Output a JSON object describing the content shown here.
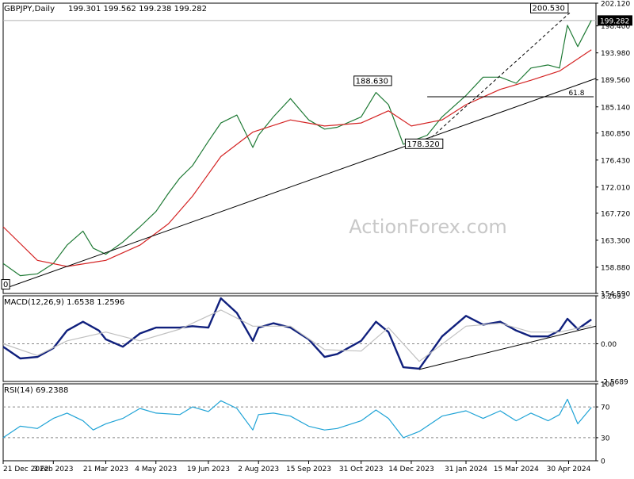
{
  "chart_data": [
    {
      "type": "line",
      "panel": "price",
      "title": "GBPJPY,Daily",
      "ohlc_header": "199.301 199.562 199.238 199.282",
      "watermark": "ActionForex.com",
      "current_price": 199.282,
      "current_price_label": "199.282",
      "ylim": [
        154.59,
        202.12
      ],
      "yticks": [
        "202.120",
        "198.400",
        "193.980",
        "189.560",
        "185.140",
        "180.850",
        "176.430",
        "172.010",
        "167.720",
        "163.300",
        "158.880",
        "154.590"
      ],
      "x_categories": [
        "21 Dec 2022",
        "3 Feb 2023",
        "21 Mar 2023",
        "4 May 2023",
        "19 Jun 2023",
        "2 Aug 2023",
        "15 Sep 2023",
        "31 Oct 2023",
        "14 Dec 2023",
        "31 Jan 2024",
        "15 Mar 2024",
        "30 Apr 2024"
      ],
      "series": [
        {
          "kind": "daily bars (midpoint)",
          "color": "#1f7a35",
          "x": [
            "2022-12-21",
            "2023-01-05",
            "2023-01-20",
            "2023-02-03",
            "2023-02-15",
            "2023-03-01",
            "2023-03-10",
            "2023-03-21",
            "2023-04-05",
            "2023-04-20",
            "2023-05-04",
            "2023-05-15",
            "2023-05-25",
            "2023-06-05",
            "2023-06-19",
            "2023-06-30",
            "2023-07-14",
            "2023-07-28",
            "2023-08-02",
            "2023-08-15",
            "2023-08-30",
            "2023-09-15",
            "2023-09-29",
            "2023-10-10",
            "2023-10-31",
            "2023-11-13",
            "2023-11-24",
            "2023-12-07",
            "2023-12-14",
            "2023-12-28",
            "2024-01-10",
            "2024-01-31",
            "2024-02-15",
            "2024-03-01",
            "2024-03-15",
            "2024-03-28",
            "2024-04-12",
            "2024-04-22",
            "2024-04-29",
            "2024-05-08",
            "2024-05-20"
          ],
          "y": [
            159.5,
            157.5,
            157.8,
            159.5,
            162.5,
            164.8,
            162.0,
            161.0,
            163.0,
            165.5,
            168.0,
            171.0,
            173.5,
            175.5,
            179.5,
            182.5,
            183.8,
            178.5,
            180.5,
            183.5,
            186.5,
            183.0,
            181.5,
            181.8,
            183.5,
            187.5,
            185.5,
            179.0,
            179.5,
            180.5,
            183.5,
            187.0,
            190.0,
            190.0,
            189.0,
            191.5,
            192.0,
            191.5,
            198.5,
            195.0,
            199.3
          ]
        },
        {
          "name": "moving average",
          "color": "#d42323",
          "x": [
            "2022-12-21",
            "2023-01-20",
            "2023-02-15",
            "2023-03-21",
            "2023-04-20",
            "2023-05-15",
            "2023-06-05",
            "2023-06-30",
            "2023-07-28",
            "2023-08-30",
            "2023-09-29",
            "2023-10-31",
            "2023-11-24",
            "2023-12-14",
            "2024-01-10",
            "2024-01-31",
            "2024-03-01",
            "2024-03-28",
            "2024-04-22",
            "2024-05-20"
          ],
          "y": [
            165.5,
            160.0,
            159.0,
            160.0,
            162.5,
            166.0,
            170.5,
            177.0,
            181.0,
            183.0,
            182.0,
            182.5,
            184.5,
            182.0,
            183.0,
            185.5,
            188.0,
            189.5,
            191.0,
            194.5
          ]
        }
      ],
      "annotations": [
        {
          "text": "200.530",
          "x": "2024-05-01",
          "y": 200.53
        },
        {
          "text": "188.630",
          "x": "2023-11-13",
          "y": 188.63
        },
        {
          "text": "178.320",
          "x": "2023-12-28",
          "y": 178.32
        },
        {
          "text": "61.8",
          "x": "2024-05-20",
          "y": 186.8
        },
        {
          "text": "0",
          "x": "2022-12-21",
          "y": 155.3
        }
      ],
      "trendlines": [
        {
          "kind": "support",
          "from": {
            "x": "2022-12-21",
            "y": 155.3
          },
          "to": {
            "x": "2024-05-24",
            "y": 189.8
          }
        },
        {
          "kind": "fibonacci 61.8",
          "from": {
            "x": "2023-12-28",
            "y": 186.8
          },
          "to": {
            "x": "2024-05-22",
            "y": 186.8
          }
        },
        {
          "kind": "dashed projection",
          "from": {
            "x": "2023-12-21",
            "y": 178.32
          },
          "to": {
            "x": "2024-05-01",
            "y": 200.53
          }
        }
      ]
    },
    {
      "type": "line",
      "panel": "macd",
      "title": "MACD(12,26,9) 1.6538 1.2596",
      "ylim": [
        -2.5689,
        3.2693
      ],
      "yticks": [
        "3.2693",
        "0.00",
        "-2.5689"
      ],
      "series": [
        {
          "name": "MACD",
          "color": "#10207d",
          "x": [
            "2022-12-21",
            "2023-01-05",
            "2023-01-20",
            "2023-02-03",
            "2023-02-15",
            "2023-03-01",
            "2023-03-15",
            "2023-03-21",
            "2023-04-05",
            "2023-04-20",
            "2023-05-04",
            "2023-05-25",
            "2023-06-05",
            "2023-06-19",
            "2023-06-30",
            "2023-07-14",
            "2023-07-28",
            "2023-08-02",
            "2023-08-15",
            "2023-08-30",
            "2023-09-15",
            "2023-09-29",
            "2023-10-10",
            "2023-10-31",
            "2023-11-13",
            "2023-11-24",
            "2023-12-07",
            "2023-12-21",
            "2024-01-10",
            "2024-01-31",
            "2024-02-15",
            "2024-03-01",
            "2024-03-15",
            "2024-03-28",
            "2024-04-12",
            "2024-04-22",
            "2024-04-29",
            "2024-05-08",
            "2024-05-20"
          ],
          "y": [
            -0.2,
            -1.0,
            -0.9,
            -0.3,
            0.9,
            1.5,
            0.9,
            0.3,
            -0.2,
            0.7,
            1.1,
            1.1,
            1.2,
            1.1,
            3.1,
            2.1,
            0.2,
            1.1,
            1.4,
            1.1,
            0.3,
            -0.9,
            -0.7,
            0.2,
            1.5,
            0.8,
            -1.6,
            -1.7,
            0.5,
            1.9,
            1.3,
            1.5,
            0.9,
            0.5,
            0.5,
            0.9,
            1.7,
            1.0,
            1.6538
          ]
        },
        {
          "name": "Signal",
          "color": "#c0c0c0",
          "x": [
            "2022-12-21",
            "2023-01-20",
            "2023-02-15",
            "2023-03-21",
            "2023-04-20",
            "2023-05-25",
            "2023-06-30",
            "2023-07-28",
            "2023-08-30",
            "2023-09-29",
            "2023-10-31",
            "2023-11-24",
            "2023-12-21",
            "2024-01-31",
            "2024-03-01",
            "2024-03-28",
            "2024-04-22",
            "2024-05-20"
          ],
          "y": [
            0.0,
            -0.8,
            0.2,
            0.8,
            0.2,
            1.0,
            2.3,
            1.2,
            1.2,
            -0.4,
            -0.5,
            1.1,
            -1.2,
            1.2,
            1.4,
            0.8,
            0.8,
            1.2596
          ]
        }
      ],
      "trendlines": [
        {
          "kind": "support",
          "from": {
            "x": "2023-12-21",
            "y": -1.75
          },
          "to": {
            "x": "2024-05-24",
            "y": 1.2
          }
        }
      ]
    },
    {
      "type": "line",
      "panel": "rsi",
      "title": "RSI(14) 69.2388",
      "ylim": [
        0,
        100
      ],
      "yticks": [
        "100",
        "70",
        "30",
        "0"
      ],
      "levels": [
        70,
        30
      ],
      "series": [
        {
          "name": "RSI",
          "color": "#1fa3d6",
          "x": [
            "2022-12-21",
            "2023-01-05",
            "2023-01-20",
            "2023-02-03",
            "2023-02-15",
            "2023-03-01",
            "2023-03-10",
            "2023-03-21",
            "2023-04-05",
            "2023-04-20",
            "2023-05-04",
            "2023-05-25",
            "2023-06-05",
            "2023-06-19",
            "2023-06-30",
            "2023-07-14",
            "2023-07-28",
            "2023-08-02",
            "2023-08-15",
            "2023-08-30",
            "2023-09-15",
            "2023-09-29",
            "2023-10-10",
            "2023-10-31",
            "2023-11-13",
            "2023-11-24",
            "2023-12-07",
            "2023-12-21",
            "2024-01-10",
            "2024-01-31",
            "2024-02-15",
            "2024-03-01",
            "2024-03-15",
            "2024-03-28",
            "2024-04-12",
            "2024-04-22",
            "2024-04-29",
            "2024-05-08",
            "2024-05-20"
          ],
          "y": [
            30,
            45,
            42,
            55,
            62,
            52,
            40,
            48,
            55,
            68,
            62,
            60,
            70,
            64,
            78,
            68,
            40,
            60,
            62,
            58,
            45,
            40,
            42,
            52,
            66,
            55,
            30,
            38,
            58,
            65,
            55,
            65,
            52,
            62,
            52,
            60,
            80,
            48,
            69.24
          ]
        }
      ]
    }
  ]
}
